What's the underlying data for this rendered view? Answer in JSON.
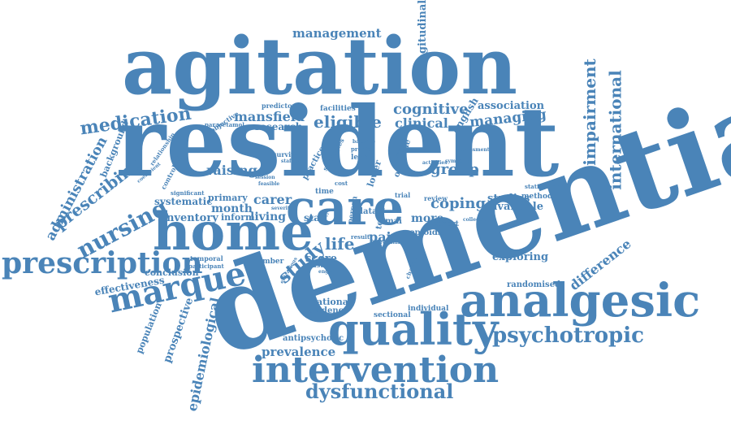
{
  "colors": {
    "background": "#ffffff",
    "word": "#4a84b8"
  },
  "words": {
    "dementia": "dementia",
    "resident": "resident",
    "agitation": "agitation",
    "home": "home",
    "care": "care",
    "analgesic": "analgesic",
    "quality": "quality",
    "intervention": "intervention",
    "prescription": "prescription",
    "marque": "marque",
    "psychotropic": "psychotropic",
    "dysfunctional": "dysfunctional",
    "nursing": "nursing",
    "medication": "medication",
    "management": "management",
    "cognitive": "cognitive",
    "managing": "managing",
    "eligible": "eligible",
    "clinical": "clinical",
    "mansfield": "mansfield",
    "research": "research",
    "association": "association",
    "impairment": "impairment",
    "international": "international",
    "longitudinal": "longitudinal",
    "english": "english",
    "facilities": "facilities",
    "predictor": "predictor",
    "objective": "objective",
    "paracetamol": "paracetamol",
    "relationship": "relationship",
    "background": "background",
    "administration": "administration",
    "prescribing": "prescribing",
    "raising": "raising",
    "controlled": "controlled",
    "coefficient": "coefficient",
    "systematic": "systematic",
    "significant": "significant",
    "primary": "primary",
    "carer": "carer",
    "month": "month",
    "inventory": "inventory",
    "inform": "inform",
    "living": "living",
    "life": "life",
    "study": "study",
    "staff": "staff",
    "pain": "pain",
    "more": "more",
    "coping": "coping",
    "studies": "studies",
    "method": "method",
    "available": "available",
    "group": "group",
    "exploring": "exploring",
    "difference": "difference",
    "randomised": "randomised",
    "conclusion": "conclusion",
    "effectiveness": "effectiveness",
    "population": "population",
    "prospective": "prospective",
    "epidemiological": "epidemiological",
    "temporal": "temporal",
    "participant": "participant",
    "number": "number",
    "score": "score",
    "cluster": "cluster",
    "national": "national",
    "evidence": "evidence",
    "antipsychotic": "antipsychotic",
    "prevalence": "prevalence",
    "sectional": "sectional",
    "individual": "individual",
    "survival": "survival",
    "strategies": "strategies",
    "practice": "practice",
    "outcome": "outcome",
    "lower": "lower",
    "level": "level",
    "predict": "predict",
    "time": "time",
    "cost": "cost",
    "data": "data",
    "term": "term",
    "cmai": "cmai",
    "opioids": "opioids",
    "cohort": "cohort",
    "review": "review",
    "statistician": "statistician",
    "person": "person",
    "trial": "trial",
    "activities": "activities",
    "symptom": "symptom",
    "collection": "collection",
    "result": "result",
    "staffing": "staffing",
    "baseline": "baseline",
    "correlation": "correlation",
    "change": "change",
    "regular": "regular",
    "assessment": "assessment",
    "severity": "severity",
    "feasible": "feasible",
    "session": "session",
    "efficacious": "efficacious",
    "england": "england"
  }
}
